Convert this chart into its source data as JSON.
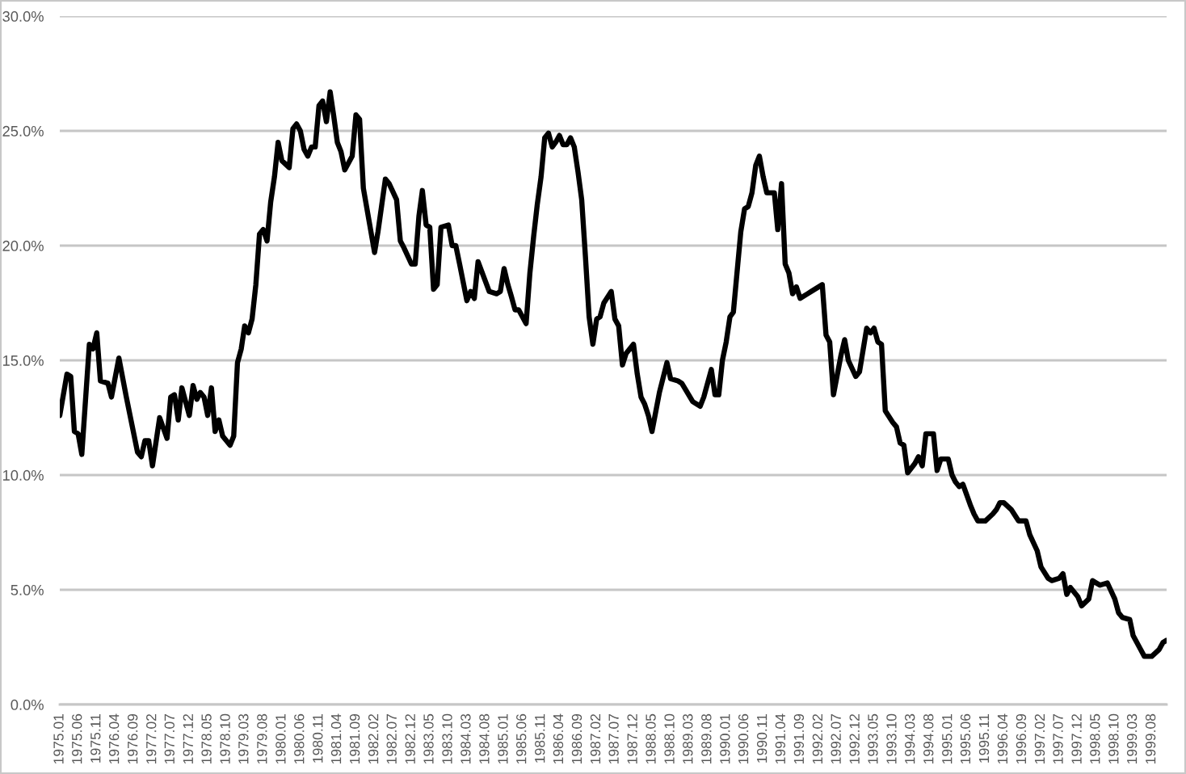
{
  "chart_data": {
    "type": "line",
    "series": [
      {
        "color": "#000000",
        "x": [
          "1975-01",
          "1975-03",
          "1975-04",
          "1975-05",
          "1975-06",
          "1975-07",
          "1975-09",
          "1975-10",
          "1975-11",
          "1975-12",
          "1976-02",
          "1976-03",
          "1976-05",
          "1976-07",
          "1976-10",
          "1976-11",
          "1976-12",
          "1977-01",
          "1977-02",
          "1977-04",
          "1977-06",
          "1977-07",
          "1977-08",
          "1977-09",
          "1977-10",
          "1977-12",
          "1978-01",
          "1978-02",
          "1978-03",
          "1978-04",
          "1978-05",
          "1978-06",
          "1978-07",
          "1978-08",
          "1978-09",
          "1978-11",
          "1978-12",
          "1979-01",
          "1979-02",
          "1979-03",
          "1979-04",
          "1979-05",
          "1979-06",
          "1979-07",
          "1979-08",
          "1979-09",
          "1979-10",
          "1979-11",
          "1979-12",
          "1980-01",
          "1980-03",
          "1980-04",
          "1980-05",
          "1980-06",
          "1980-07",
          "1980-08",
          "1980-09",
          "1980-10",
          "1980-11",
          "1980-12",
          "1981-01",
          "1981-02",
          "1981-03",
          "1981-04",
          "1981-05",
          "1981-06",
          "1981-08",
          "1981-09",
          "1981-10",
          "1981-11",
          "1982-02",
          "1982-03",
          "1982-05",
          "1982-06",
          "1982-08",
          "1982-09",
          "1982-10",
          "1982-12",
          "1983-01",
          "1983-02",
          "1983-03",
          "1983-04",
          "1983-05",
          "1983-06",
          "1983-07",
          "1983-08",
          "1983-10",
          "1983-11",
          "1983-12",
          "1984-01",
          "1984-03",
          "1984-04",
          "1984-05",
          "1984-06",
          "1984-09",
          "1984-11",
          "1984-12",
          "1985-01",
          "1985-02",
          "1985-03",
          "1985-04",
          "1985-05",
          "1985-07",
          "1985-08",
          "1985-09",
          "1985-10",
          "1985-11",
          "1985-12",
          "1986-01",
          "1986-02",
          "1986-03",
          "1986-04",
          "1986-05",
          "1986-06",
          "1986-07",
          "1986-08",
          "1986-09",
          "1986-10",
          "1986-11",
          "1986-12",
          "1987-01",
          "1987-02",
          "1987-03",
          "1987-04",
          "1987-06",
          "1987-07",
          "1987-08",
          "1987-09",
          "1987-10",
          "1987-12",
          "1988-01",
          "1988-02",
          "1988-03",
          "1988-04",
          "1988-05",
          "1988-07",
          "1988-09",
          "1988-10",
          "1988-12",
          "1989-01",
          "1989-04",
          "1989-06",
          "1989-07",
          "1989-09",
          "1989-10",
          "1989-11",
          "1989-12",
          "1990-01",
          "1990-02",
          "1990-03",
          "1990-05",
          "1990-06",
          "1990-07",
          "1990-08",
          "1990-09",
          "1990-10",
          "1990-11",
          "1990-12",
          "1991-02",
          "1991-03",
          "1991-04",
          "1991-05",
          "1991-06",
          "1991-07",
          "1991-08",
          "1991-09",
          "1991-11",
          "1991-12",
          "1992-03",
          "1992-04",
          "1992-05",
          "1992-06",
          "1992-08",
          "1992-09",
          "1992-10",
          "1992-12",
          "1993-01",
          "1993-03",
          "1993-04",
          "1993-05",
          "1993-06",
          "1993-07",
          "1993-08",
          "1993-10",
          "1993-11",
          "1993-12",
          "1994-01",
          "1994-02",
          "1994-04",
          "1994-05",
          "1994-06",
          "1994-07",
          "1994-09",
          "1994-10",
          "1994-11",
          "1995-01",
          "1995-02",
          "1995-03",
          "1995-04",
          "1995-05",
          "1995-07",
          "1995-08",
          "1995-09",
          "1995-11",
          "1996-01",
          "1996-02",
          "1996-03",
          "1996-04",
          "1996-06",
          "1996-08",
          "1996-10",
          "1996-11",
          "1997-01",
          "1997-02",
          "1997-04",
          "1997-05",
          "1997-07",
          "1997-08",
          "1997-09",
          "1997-10",
          "1997-12",
          "1998-01",
          "1998-03",
          "1998-04",
          "1998-05",
          "1998-06",
          "1998-08",
          "1998-10",
          "1998-11",
          "1998-12",
          "1999-02",
          "1999-03",
          "1999-05",
          "1999-06",
          "1999-08",
          "1999-10",
          "1999-11",
          "1999-12"
        ],
        "values": [
          12.6,
          14.4,
          14.3,
          11.9,
          11.8,
          10.9,
          15.7,
          15.5,
          16.2,
          14.1,
          14.0,
          13.4,
          15.1,
          13.4,
          11.0,
          10.8,
          11.5,
          11.5,
          10.4,
          12.5,
          11.6,
          13.4,
          13.5,
          12.4,
          13.8,
          12.6,
          13.9,
          13.3,
          13.6,
          13.4,
          12.6,
          13.8,
          11.9,
          12.4,
          11.7,
          11.3,
          11.7,
          14.9,
          15.5,
          16.5,
          16.2,
          16.8,
          18.3,
          20.5,
          20.7,
          20.2,
          21.9,
          23.0,
          24.5,
          23.7,
          23.4,
          25.1,
          25.3,
          25.0,
          24.2,
          23.9,
          24.3,
          24.3,
          26.1,
          26.3,
          25.4,
          26.7,
          25.7,
          24.5,
          24.1,
          23.3,
          23.9,
          25.7,
          25.5,
          22.5,
          19.7,
          20.6,
          22.9,
          22.7,
          22.0,
          20.2,
          19.9,
          19.2,
          19.2,
          21.3,
          22.4,
          20.9,
          20.8,
          18.1,
          18.3,
          20.8,
          20.9,
          20.0,
          20.0,
          19.2,
          17.6,
          18.0,
          17.7,
          19.3,
          18.0,
          17.9,
          18.0,
          19.0,
          18.3,
          17.8,
          17.2,
          17.2,
          16.6,
          18.8,
          20.4,
          21.8,
          23.0,
          24.7,
          24.9,
          24.3,
          24.5,
          24.8,
          24.4,
          24.4,
          24.7,
          24.3,
          23.2,
          22.0,
          19.5,
          16.9,
          15.7,
          16.8,
          16.9,
          17.5,
          18.0,
          16.8,
          16.5,
          14.8,
          15.3,
          15.7,
          14.4,
          13.4,
          13.1,
          12.6,
          11.9,
          13.6,
          14.9,
          14.2,
          14.1,
          14.0,
          13.2,
          13.0,
          13.4,
          14.6,
          13.5,
          13.5,
          15.0,
          15.8,
          16.9,
          17.1,
          20.6,
          21.6,
          21.7,
          22.3,
          23.5,
          23.9,
          23.0,
          22.3,
          22.3,
          20.7,
          22.7,
          19.2,
          18.8,
          17.9,
          18.2,
          17.7,
          17.9,
          18.0,
          18.3,
          16.1,
          15.8,
          13.5,
          15.2,
          15.9,
          15.0,
          14.3,
          14.5,
          16.4,
          16.2,
          16.4,
          15.8,
          15.7,
          12.8,
          12.3,
          12.1,
          11.4,
          11.3,
          10.1,
          10.5,
          10.8,
          10.4,
          11.8,
          11.8,
          10.2,
          10.7,
          10.7,
          10.0,
          9.7,
          9.5,
          9.6,
          8.7,
          8.3,
          8.0,
          8.0,
          8.3,
          8.5,
          8.8,
          8.8,
          8.5,
          8.0,
          8.0,
          7.4,
          6.7,
          6.0,
          5.5,
          5.4,
          5.5,
          5.7,
          4.8,
          5.1,
          4.7,
          4.3,
          4.6,
          5.4,
          5.3,
          5.2,
          5.3,
          4.6,
          4.0,
          3.8,
          3.7,
          3.0,
          2.4,
          2.1,
          2.1,
          2.4,
          2.7,
          2.8
        ]
      }
    ],
    "xlim": [
      "1975-01",
      "1999-12"
    ],
    "xticks": [
      {
        "value": "1975-01",
        "label": "1975.01"
      },
      {
        "value": "1975-06",
        "label": "1975.06"
      },
      {
        "value": "1975-11",
        "label": "1975.11"
      },
      {
        "value": "1976-04",
        "label": "1976.04"
      },
      {
        "value": "1976-09",
        "label": "1976.09"
      },
      {
        "value": "1977-02",
        "label": "1977.02"
      },
      {
        "value": "1977-07",
        "label": "1977.07"
      },
      {
        "value": "1977-12",
        "label": "1977.12"
      },
      {
        "value": "1978-05",
        "label": "1978.05"
      },
      {
        "value": "1978-10",
        "label": "1978.10"
      },
      {
        "value": "1979-03",
        "label": "1979.03"
      },
      {
        "value": "1979-08",
        "label": "1979.08"
      },
      {
        "value": "1980-01",
        "label": "1980.01"
      },
      {
        "value": "1980-06",
        "label": "1980.06"
      },
      {
        "value": "1980-11",
        "label": "1980.11"
      },
      {
        "value": "1981-04",
        "label": "1981.04"
      },
      {
        "value": "1981-09",
        "label": "1981.09"
      },
      {
        "value": "1982-02",
        "label": "1982.02"
      },
      {
        "value": "1982-07",
        "label": "1982.07"
      },
      {
        "value": "1982-12",
        "label": "1982.12"
      },
      {
        "value": "1983-05",
        "label": "1983.05"
      },
      {
        "value": "1983-10",
        "label": "1983.10"
      },
      {
        "value": "1984-03",
        "label": "1984.03"
      },
      {
        "value": "1984-08",
        "label": "1984.08"
      },
      {
        "value": "1985-01",
        "label": "1985.01"
      },
      {
        "value": "1985-06",
        "label": "1985.06"
      },
      {
        "value": "1985-11",
        "label": "1985.11"
      },
      {
        "value": "1986-04",
        "label": "1986.04"
      },
      {
        "value": "1986-09",
        "label": "1986.09"
      },
      {
        "value": "1987-02",
        "label": "1987.02"
      },
      {
        "value": "1987-07",
        "label": "1987.07"
      },
      {
        "value": "1987-12",
        "label": "1987.12"
      },
      {
        "value": "1988-05",
        "label": "1988.05"
      },
      {
        "value": "1988-10",
        "label": "1988.10"
      },
      {
        "value": "1989-03",
        "label": "1989.03"
      },
      {
        "value": "1989-08",
        "label": "1989.08"
      },
      {
        "value": "1990-01",
        "label": "1990.01"
      },
      {
        "value": "1990-06",
        "label": "1990.06"
      },
      {
        "value": "1990-11",
        "label": "1990.11"
      },
      {
        "value": "1991-04",
        "label": "1991.04"
      },
      {
        "value": "1991-09",
        "label": "1991.09"
      },
      {
        "value": "1992-02",
        "label": "1992.02"
      },
      {
        "value": "1992-07",
        "label": "1992.07"
      },
      {
        "value": "1992-12",
        "label": "1992.12"
      },
      {
        "value": "1993-05",
        "label": "1993.05"
      },
      {
        "value": "1993-10",
        "label": "1993.10"
      },
      {
        "value": "1994-03",
        "label": "1994.03"
      },
      {
        "value": "1994-08",
        "label": "1994.08"
      },
      {
        "value": "1995-01",
        "label": "1995.01"
      },
      {
        "value": "1995-06",
        "label": "1995.06"
      },
      {
        "value": "1995-11",
        "label": "1995.11"
      },
      {
        "value": "1996-04",
        "label": "1996.04"
      },
      {
        "value": "1996-09",
        "label": "1996.09"
      },
      {
        "value": "1997-02",
        "label": "1997.02"
      },
      {
        "value": "1997-07",
        "label": "1997.07"
      },
      {
        "value": "1997-12",
        "label": "1997.12"
      },
      {
        "value": "1998-05",
        "label": "1998.05"
      },
      {
        "value": "1998-10",
        "label": "1998.10"
      },
      {
        "value": "1999-03",
        "label": "1999.03"
      },
      {
        "value": "1999-08",
        "label": "1999.08"
      }
    ],
    "ylim": [
      0,
      30
    ],
    "yticks": [
      {
        "value": 0,
        "label": "0.0%"
      },
      {
        "value": 5,
        "label": "5.0%"
      },
      {
        "value": 10,
        "label": "10.0%"
      },
      {
        "value": 15,
        "label": "15.0%"
      },
      {
        "value": 20,
        "label": "20.0%"
      },
      {
        "value": 25,
        "label": "25.0%"
      },
      {
        "value": 30,
        "label": "30.0%"
      }
    ],
    "grid": "y"
  }
}
